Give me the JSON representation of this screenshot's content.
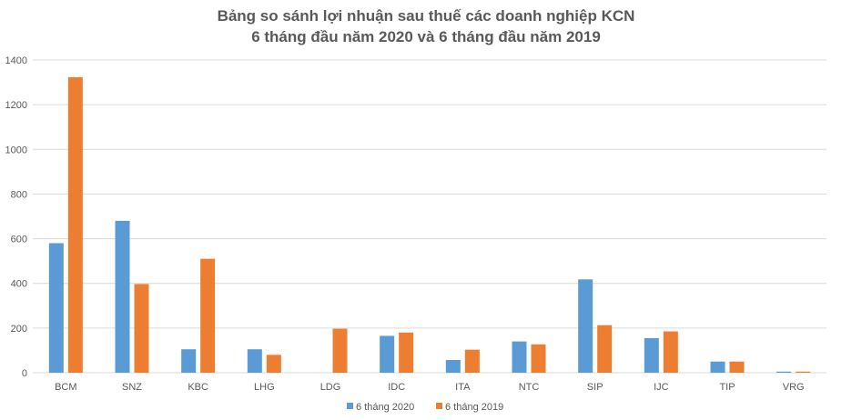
{
  "chart_data": {
    "type": "bar",
    "title_line1": "Bảng so sánh lợi nhuận sau thuế các doanh nghiệp KCN",
    "title_line2": "6 tháng đầu năm 2020 và 6 tháng đầu năm 2019",
    "categories": [
      "BCM",
      "SNZ",
      "KBC",
      "LHG",
      "LDG",
      "IDC",
      "ITA",
      "NTC",
      "SIP",
      "IJC",
      "TIP",
      "VRG"
    ],
    "series": [
      {
        "name": "6 tháng 2020",
        "color": "#5B9BD5",
        "values": [
          580,
          680,
          105,
          105,
          0,
          165,
          57,
          140,
          418,
          155,
          50,
          5
        ]
      },
      {
        "name": "6 tháng 2019",
        "color": "#ED7D31",
        "values": [
          1323,
          397,
          510,
          80,
          197,
          180,
          103,
          127,
          213,
          185,
          50,
          5
        ]
      }
    ],
    "ylim": [
      0,
      1400
    ],
    "yticks": [
      0,
      200,
      400,
      600,
      800,
      1000,
      1200,
      1400
    ],
    "grid": true,
    "legend": "bottom"
  }
}
